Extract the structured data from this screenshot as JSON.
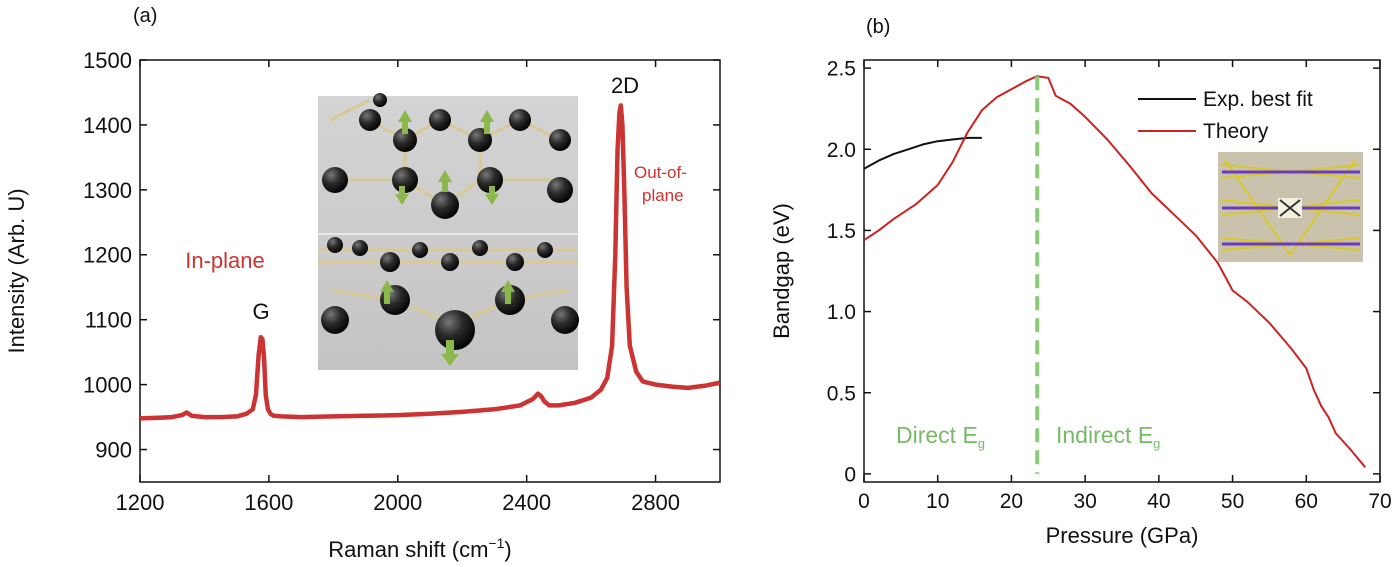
{
  "colors": {
    "raman": "#cc3333",
    "theory": "#cc2222",
    "exp": "#111111",
    "divider": "#88cc77",
    "annotation_red": "#cc3333",
    "annotation_green": "#77bb66"
  },
  "chart_data": [
    {
      "panel_label": "(a)",
      "type": "line",
      "xlabel": "Raman shift (cm",
      "xlabel_sup": "−1",
      "xlabel_end": ")",
      "ylabel": "Intensity (Arb. U)",
      "xlim": [
        1200,
        3000
      ],
      "ylim": [
        850,
        1500
      ],
      "xticks": [
        1200,
        1600,
        2000,
        2400,
        2800
      ],
      "yticks": [
        900,
        1000,
        1100,
        1200,
        1300,
        1400,
        1500
      ],
      "grid": false,
      "series": [
        {
          "x": [
            1200,
            1260,
            1300,
            1330,
            1345,
            1360,
            1400,
            1450,
            1500,
            1530,
            1550,
            1560,
            1568,
            1575,
            1580,
            1585,
            1590,
            1597,
            1605,
            1615,
            1640,
            1700,
            1800,
            1900,
            2000,
            2100,
            2200,
            2300,
            2380,
            2420,
            2435,
            2445,
            2455,
            2470,
            2500,
            2550,
            2600,
            2630,
            2650,
            2665,
            2675,
            2682,
            2688,
            2692,
            2697,
            2703,
            2710,
            2720,
            2740,
            2760,
            2800,
            2850,
            2900,
            2950,
            3000
          ],
          "y": [
            948,
            949,
            950,
            953,
            957,
            952,
            950,
            950,
            951,
            955,
            962,
            985,
            1045,
            1073,
            1070,
            1040,
            985,
            962,
            955,
            952,
            951,
            950,
            951,
            952,
            953,
            955,
            958,
            962,
            968,
            978,
            986,
            982,
            974,
            968,
            968,
            972,
            980,
            992,
            1010,
            1060,
            1200,
            1360,
            1420,
            1430,
            1400,
            1300,
            1150,
            1060,
            1020,
            1005,
            1000,
            997,
            995,
            998,
            1003
          ]
        }
      ],
      "annotations": {
        "in_plane": "In-plane",
        "g_peak": "G",
        "d2_peak": "2D",
        "out_of_plane_1": "Out-of-",
        "out_of_plane_2": "plane"
      }
    },
    {
      "panel_label": "(b)",
      "type": "line",
      "xlabel": "Pressure (GPa)",
      "ylabel": "Bandgap (eV)",
      "xlim": [
        0,
        70
      ],
      "ylim": [
        -0.05,
        2.55
      ],
      "xticks": [
        0,
        10,
        20,
        30,
        40,
        50,
        60,
        70
      ],
      "yticks": [
        0,
        0.5,
        1.0,
        1.5,
        2.0,
        2.5
      ],
      "ytick_labels": [
        "0",
        "0.5",
        "1.0",
        "1.5",
        "2.0",
        "2.5"
      ],
      "grid": false,
      "legend_position": "top-right",
      "series": [
        {
          "name": "Exp. best fit",
          "x": [
            0,
            2,
            4,
            6,
            8,
            10,
            12,
            14,
            16
          ],
          "y": [
            1.88,
            1.93,
            1.97,
            2.0,
            2.03,
            2.05,
            2.06,
            2.07,
            2.07
          ]
        },
        {
          "name": "Theory",
          "x": [
            0,
            2,
            4,
            5,
            6,
            7,
            8,
            10,
            12,
            14,
            16,
            18,
            20,
            22,
            23.5,
            25,
            26,
            28,
            30,
            33,
            36,
            39,
            42,
            45,
            48,
            50,
            52,
            55,
            58,
            60,
            61,
            62,
            63,
            64,
            66,
            68
          ],
          "y": [
            1.44,
            1.5,
            1.57,
            1.6,
            1.63,
            1.66,
            1.7,
            1.78,
            1.92,
            2.1,
            2.24,
            2.32,
            2.37,
            2.42,
            2.45,
            2.44,
            2.33,
            2.28,
            2.2,
            2.06,
            1.9,
            1.73,
            1.6,
            1.47,
            1.3,
            1.13,
            1.06,
            0.93,
            0.77,
            0.65,
            0.52,
            0.42,
            0.35,
            0.25,
            0.15,
            0.04
          ]
        }
      ],
      "divider_x": 23.5,
      "annotations": {
        "direct": "Direct E",
        "direct_sub": "g",
        "indirect": "Indirect E",
        "indirect_sub": "g"
      }
    }
  ]
}
